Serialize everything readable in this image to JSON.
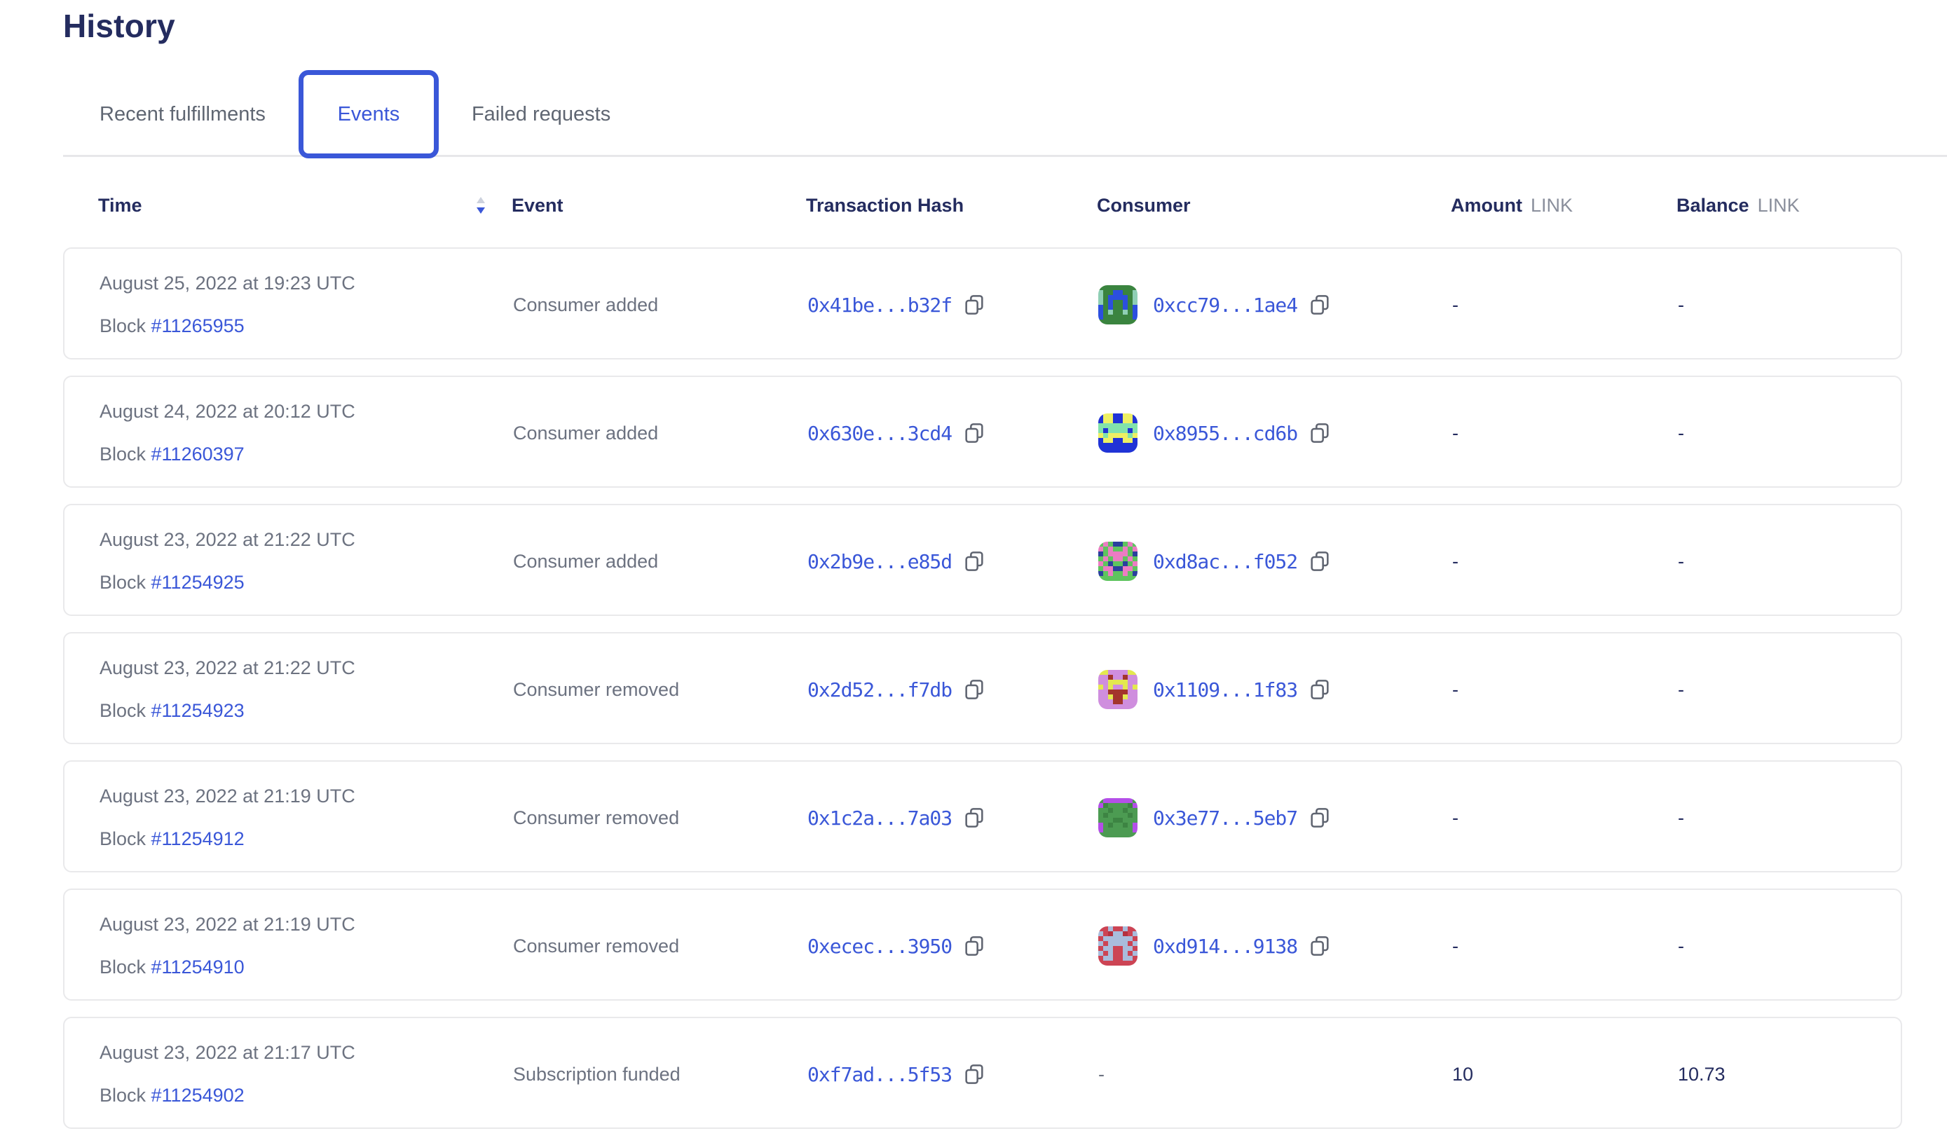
{
  "accent": "#3a57d8",
  "page": {
    "title": "History"
  },
  "tabs": [
    {
      "label": "Recent fulfillments",
      "active": false
    },
    {
      "label": "Events",
      "active": true
    },
    {
      "label": "Failed requests",
      "active": false
    }
  ],
  "table": {
    "columns": {
      "time": "Time",
      "event": "Event",
      "tx": "Transaction Hash",
      "consumer": "Consumer",
      "amount": "Amount",
      "balance": "Balance",
      "unit": "LINK"
    },
    "sort": {
      "column": "time",
      "direction": "descending"
    },
    "rows": [
      {
        "date": "August 25, 2022 at 19:23 UTC",
        "block_label": "Block",
        "block": "#11265955",
        "event": "Consumer added",
        "tx": "0x41be...b32f",
        "consumer": "0xcc79...1ae4",
        "amount": "-",
        "balance": "-",
        "avatar": {
          "bg": "#3a843f",
          "fg": "#2c4fdf",
          "spot": "#8fcfb5",
          "pattern": [
            "bbbbbbbb",
            "sbbffbbs",
            "sbffffbs",
            "sbfbbfbs",
            "fbfbbfbf",
            "fbsbbsbf",
            "fbbbbbbf",
            "bbbbbbbb"
          ]
        }
      },
      {
        "date": "August 24, 2022 at 20:12 UTC",
        "block_label": "Block",
        "block": "#11260397",
        "event": "Consumer added",
        "tx": "0x630e...3cd4",
        "consumer": "0x8955...cd6b",
        "amount": "-",
        "balance": "-",
        "avatar": {
          "bg": "#2033d6",
          "fg": "#eef063",
          "spot": "#82e3ab",
          "pattern": [
            "bffbbffb",
            "bffbbffb",
            "ssssssss",
            "sbssssbs",
            "fsffffsf",
            "bffbbffb",
            "bbbbbbbb",
            "bbbbbbbb"
          ]
        }
      },
      {
        "date": "August 23, 2022 at 21:22 UTC",
        "block_label": "Block",
        "block": "#11254925",
        "event": "Consumer added",
        "tx": "0x2b9e...e85d",
        "consumer": "0xd8ac...f052",
        "amount": "-",
        "balance": "-",
        "avatar": {
          "bg": "#5ec45e",
          "fg": "#ec7cc3",
          "spot": "#2b3f9e",
          "pattern": [
            "bfbssbfb",
            "fbfbbfbf",
            "sbffffbs",
            "bfbffbfb",
            "fbsbbsbf",
            "bffssffb",
            "sbfbbfbs",
            "bbbbbbbb"
          ]
        }
      },
      {
        "date": "August 23, 2022 at 21:22 UTC",
        "block_label": "Block",
        "block": "#11254923",
        "event": "Consumer removed",
        "tx": "0x2d52...f7db",
        "consumer": "0x1109...1f83",
        "amount": "-",
        "balance": "-",
        "avatar": {
          "bg": "#cf8ede",
          "fg": "#e3e84f",
          "spot": "#a3342c",
          "pattern": [
            "ffbbbbff",
            "bbsbbsbb",
            "bbffffbb",
            "fbfbbfbf",
            "bbssssbb",
            "bbfssfbb",
            "bbbssbbb",
            "bbbbbbbb"
          ]
        }
      },
      {
        "date": "August 23, 2022 at 21:19 UTC",
        "block_label": "Block",
        "block": "#11254912",
        "event": "Consumer removed",
        "tx": "0x1c2a...7a03",
        "consumer": "0x3e77...5eb7",
        "amount": "-",
        "balance": "-",
        "avatar": {
          "bg": "#4c9b52",
          "fg": "#b44fe8",
          "spot": "#3d8443",
          "pattern": [
            "bffffffb",
            "fsbbbbsf",
            "bbsbbsbb",
            "bsbbbbsb",
            "bbbssbbb",
            "fbsbbsbf",
            "fbbbbbbf",
            "bbbbbbbb"
          ]
        }
      },
      {
        "date": "August 23, 2022 at 21:19 UTC",
        "block_label": "Block",
        "block": "#11254910",
        "event": "Consumer removed",
        "tx": "0xecec...3950",
        "consumer": "0xd914...9138",
        "amount": "-",
        "balance": "-",
        "avatar": {
          "bg": "#cc4454",
          "fg": "#a9bcdc",
          "spot": "#b5303f",
          "pattern": [
            "bbfbbfbb",
            "fbsffsbf",
            "bffffffb",
            "fbffffbf",
            "bffbbffb",
            "fbfbbfbf",
            "bffbbffb",
            "bbbbbbbb"
          ]
        }
      },
      {
        "date": "August 23, 2022 at 21:17 UTC",
        "block_label": "Block",
        "block": "#11254902",
        "event": "Subscription funded",
        "tx": "0xf7ad...5f53",
        "consumer": "-",
        "amount": "10",
        "balance": "10.73",
        "avatar": null
      }
    ]
  }
}
